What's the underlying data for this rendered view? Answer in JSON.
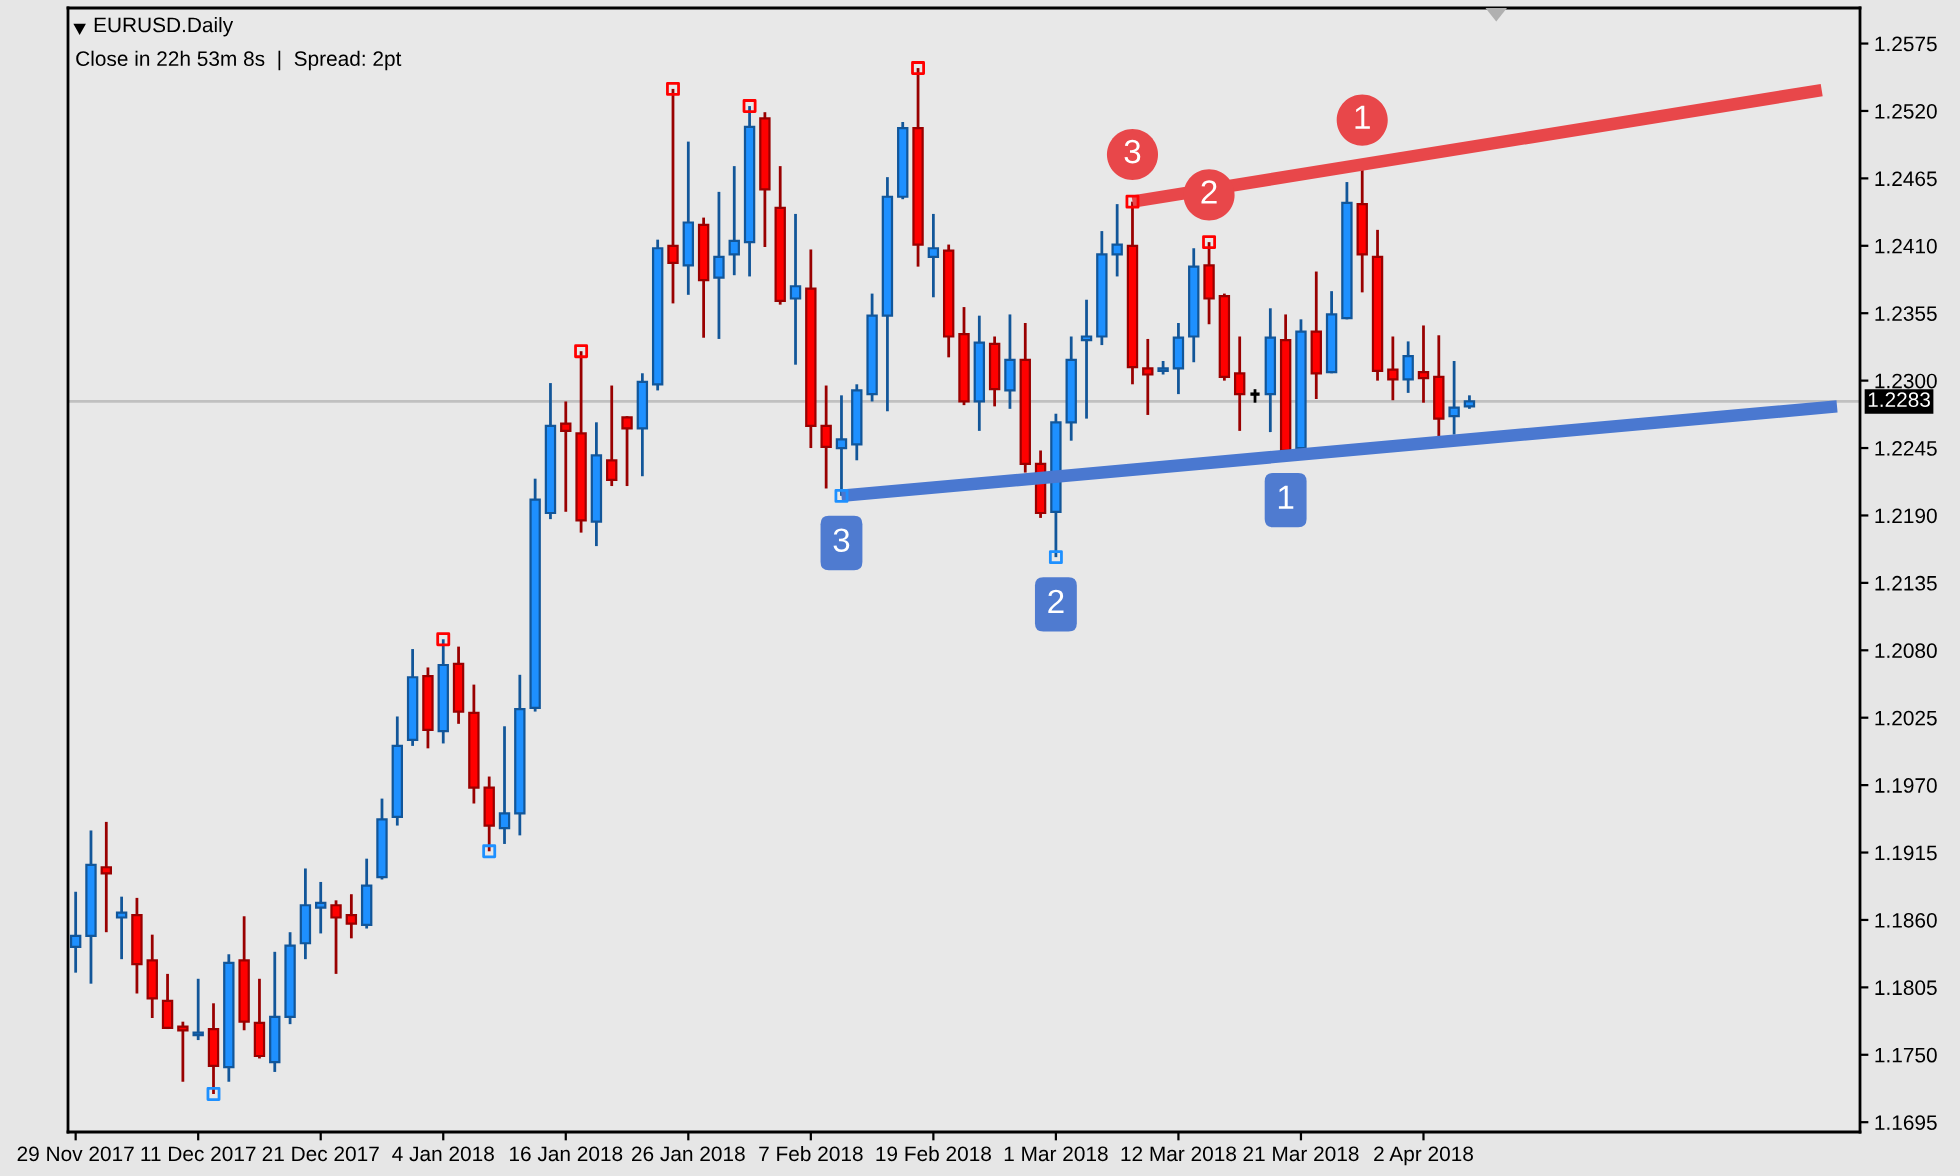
{
  "chart_data": {
    "type": "candlestick",
    "title": "EURUSD.Daily",
    "subtitle": "Close in 22h 53m 8s  |  Spread: 2pt",
    "categories": [
      "29 Nov 2017",
      null,
      null,
      null,
      null,
      null,
      null,
      null,
      "11 Dec 2017",
      null,
      null,
      null,
      null,
      null,
      null,
      null,
      "21 Dec 2017",
      null,
      null,
      null,
      null,
      null,
      null,
      null,
      "4 Jan 2018",
      null,
      null,
      null,
      null,
      null,
      null,
      null,
      "16 Jan 2018",
      null,
      null,
      null,
      null,
      null,
      null,
      null,
      "26 Jan 2018",
      null,
      null,
      null,
      null,
      null,
      null,
      null,
      "7 Feb 2018",
      null,
      null,
      null,
      null,
      null,
      null,
      null,
      "19 Feb 2018",
      null,
      null,
      null,
      null,
      null,
      null,
      null,
      "1 Mar 2018",
      null,
      null,
      null,
      null,
      null,
      null,
      null,
      "12 Mar 2018",
      null,
      null,
      null,
      null,
      null,
      null,
      null,
      "21 Mar 2018",
      null,
      null,
      null,
      null,
      null,
      null,
      null,
      "2 Apr 2018",
      null,
      null,
      null,
      null,
      null,
      null,
      null,
      null,
      null,
      null,
      null,
      null,
      null,
      null,
      null,
      null,
      null,
      null,
      null,
      null,
      null,
      null,
      null,
      null,
      null,
      null,
      null,
      null
    ],
    "ohlc": [
      [
        1.1838,
        1.1883,
        1.1817,
        1.1847
      ],
      [
        1.1847,
        1.1933,
        1.1808,
        1.1905
      ],
      [
        1.1903,
        1.194,
        1.185,
        1.1898
      ],
      [
        1.1862,
        1.1879,
        1.1828,
        1.1866
      ],
      [
        1.1864,
        1.1878,
        1.18,
        1.1824
      ],
      [
        1.1827,
        1.1848,
        1.178,
        1.1796
      ],
      [
        1.1794,
        1.1816,
        1.1771,
        1.1772
      ],
      [
        1.1773,
        1.1777,
        1.1728,
        1.177
      ],
      [
        1.1766,
        1.1812,
        1.1762,
        1.1768
      ],
      [
        1.1771,
        1.1792,
        1.1718,
        1.1741
      ],
      [
        1.174,
        1.1832,
        1.1728,
        1.1825
      ],
      [
        1.1827,
        1.1863,
        1.177,
        1.1777
      ],
      [
        1.1776,
        1.1812,
        1.1747,
        1.1749
      ],
      [
        1.1744,
        1.1834,
        1.1736,
        1.1781
      ],
      [
        1.1781,
        1.185,
        1.1775,
        1.1839
      ],
      [
        1.1841,
        1.1902,
        1.1828,
        1.1872
      ],
      [
        1.187,
        1.1891,
        1.1849,
        1.1874
      ],
      [
        1.1872,
        1.1876,
        1.1816,
        1.1862
      ],
      [
        1.1864,
        1.1881,
        1.1845,
        1.1857
      ],
      [
        1.1856,
        1.191,
        1.1853,
        1.1888
      ],
      [
        1.1895,
        1.1959,
        1.1893,
        1.1942
      ],
      [
        1.1944,
        1.2026,
        1.1937,
        1.2002
      ],
      [
        1.2007,
        1.2081,
        1.2002,
        1.2058
      ],
      [
        1.2059,
        1.2066,
        1.2,
        1.2015
      ],
      [
        1.2014,
        1.2089,
        1.2004,
        1.2068
      ],
      [
        1.2069,
        1.2083,
        1.202,
        1.203
      ],
      [
        1.2029,
        1.2052,
        1.1955,
        1.1968
      ],
      [
        1.1968,
        1.1977,
        1.1916,
        1.1937
      ],
      [
        1.1935,
        1.2018,
        1.1922,
        1.1947
      ],
      [
        1.1947,
        1.206,
        1.1929,
        1.2032
      ],
      [
        1.2033,
        1.222,
        1.203,
        1.2203
      ],
      [
        1.2192,
        1.2298,
        1.2187,
        1.2263
      ],
      [
        1.2265,
        1.2283,
        1.2193,
        1.2259
      ],
      [
        1.2257,
        1.2324,
        1.2176,
        1.2186
      ],
      [
        1.2185,
        1.2266,
        1.2165,
        1.2239
      ],
      [
        1.2235,
        1.2296,
        1.2214,
        1.2219
      ],
      [
        1.227,
        1.2271,
        1.2214,
        1.2261
      ],
      [
        1.2261,
        1.2306,
        1.2222,
        1.2299
      ],
      [
        1.2297,
        1.2415,
        1.2292,
        1.2408
      ],
      [
        1.241,
        1.2538,
        1.2363,
        1.2396
      ],
      [
        1.2394,
        1.2495,
        1.237,
        1.2429
      ],
      [
        1.2427,
        1.2433,
        1.2335,
        1.2382
      ],
      [
        1.2384,
        1.2454,
        1.2334,
        1.2401
      ],
      [
        1.2403,
        1.2475,
        1.2386,
        1.2414
      ],
      [
        1.2413,
        1.2524,
        1.2385,
        1.2507
      ],
      [
        1.2514,
        1.2519,
        1.2409,
        1.2456
      ],
      [
        1.2441,
        1.2475,
        1.2362,
        1.2365
      ],
      [
        1.2367,
        1.2436,
        1.2313,
        1.2377
      ],
      [
        1.2375,
        1.2407,
        1.2245,
        1.2263
      ],
      [
        1.2263,
        1.2296,
        1.2212,
        1.2246
      ],
      [
        1.2245,
        1.2288,
        1.2206,
        1.2252
      ],
      [
        1.2248,
        1.2297,
        1.2235,
        1.2292
      ],
      [
        1.2289,
        1.2371,
        1.2283,
        1.2353
      ],
      [
        1.2353,
        1.2466,
        1.2275,
        1.245
      ],
      [
        1.245,
        1.2511,
        1.2448,
        1.2506
      ],
      [
        1.2506,
        1.2555,
        1.2393,
        1.2411
      ],
      [
        1.2401,
        1.2436,
        1.2368,
        1.2408
      ],
      [
        1.2406,
        1.2411,
        1.2319,
        1.2336
      ],
      [
        1.2338,
        1.236,
        1.228,
        1.2283
      ],
      [
        1.2283,
        1.2353,
        1.2259,
        1.2331
      ],
      [
        1.233,
        1.2336,
        1.2279,
        1.2293
      ],
      [
        1.2292,
        1.2354,
        1.2277,
        1.2317
      ],
      [
        1.2317,
        1.2347,
        1.2225,
        1.2232
      ],
      [
        1.2232,
        1.2243,
        1.2188,
        1.2192
      ],
      [
        1.2193,
        1.2273,
        1.2156,
        1.2266
      ],
      [
        1.2266,
        1.2336,
        1.2251,
        1.2317
      ],
      [
        1.2333,
        1.2366,
        1.2269,
        1.2336
      ],
      [
        1.2336,
        1.2422,
        1.2329,
        1.2403
      ],
      [
        1.2403,
        1.2444,
        1.2385,
        1.2411
      ],
      [
        1.241,
        1.2446,
        1.2297,
        1.2311
      ],
      [
        1.231,
        1.2334,
        1.2272,
        1.2305
      ],
      [
        1.2308,
        1.2316,
        1.2305,
        1.231
      ],
      [
        1.231,
        1.2347,
        1.2289,
        1.2335
      ],
      [
        1.2336,
        1.2408,
        1.2315,
        1.2393
      ],
      [
        1.2394,
        1.2413,
        1.2346,
        1.2367
      ],
      [
        1.2369,
        1.2371,
        1.23,
        1.2303
      ],
      [
        1.2306,
        1.2336,
        1.2259,
        1.2289
      ],
      [
        1.2289,
        1.2293,
        1.2282,
        1.2289
      ],
      [
        1.2289,
        1.2359,
        1.2258,
        1.2335
      ],
      [
        1.2333,
        1.2354,
        1.2241,
        1.2243
      ],
      [
        1.2245,
        1.235,
        1.2243,
        1.234
      ],
      [
        1.234,
        1.2389,
        1.2285,
        1.2306
      ],
      [
        1.2307,
        1.2373,
        1.2306,
        1.2354
      ],
      [
        1.2351,
        1.2462,
        1.235,
        1.2445
      ],
      [
        1.2444,
        1.2474,
        1.2372,
        1.2403
      ],
      [
        1.2401,
        1.2423,
        1.23,
        1.2308
      ],
      [
        1.2309,
        1.2336,
        1.2284,
        1.2301
      ],
      [
        1.2301,
        1.2332,
        1.229,
        1.232
      ],
      [
        1.2307,
        1.2345,
        1.2282,
        1.2302
      ],
      [
        1.2303,
        1.2337,
        1.2254,
        1.2269
      ],
      [
        1.2271,
        1.2316,
        1.2256,
        1.2278
      ],
      [
        1.2279,
        1.2288,
        1.2277,
        1.2283
      ],
      null,
      null,
      null,
      null,
      null,
      null,
      null,
      null,
      null,
      null,
      null,
      null,
      null,
      null,
      null,
      null,
      null,
      null,
      null,
      null,
      null,
      null,
      null,
      null,
      null
    ],
    "colors": [
      "#1e90ff",
      "#1e90ff",
      "#ff0000",
      "#1e90ff",
      "#ff0000",
      "#ff0000",
      "#ff0000",
      "#ff0000",
      "#1e90ff",
      "#ff0000",
      "#1e90ff",
      "#ff0000",
      "#ff0000",
      "#1e90ff",
      "#1e90ff",
      "#1e90ff",
      "#1e90ff",
      "#ff0000",
      "#ff0000",
      "#1e90ff",
      "#1e90ff",
      "#1e90ff",
      "#1e90ff",
      "#ff0000",
      "#1e90ff",
      "#ff0000",
      "#ff0000",
      "#ff0000",
      "#1e90ff",
      "#1e90ff",
      "#1e90ff",
      "#1e90ff",
      "#ff0000",
      "#ff0000",
      "#1e90ff",
      "#ff0000",
      "#ff0000",
      "#1e90ff",
      "#1e90ff",
      "#ff0000",
      "#1e90ff",
      "#ff0000",
      "#1e90ff",
      "#1e90ff",
      "#1e90ff",
      "#ff0000",
      "#ff0000",
      "#1e90ff",
      "#ff0000",
      "#ff0000",
      "#1e90ff",
      "#1e90ff",
      "#1e90ff",
      "#1e90ff",
      "#1e90ff",
      "#ff0000",
      "#1e90ff",
      "#ff0000",
      "#ff0000",
      "#1e90ff",
      "#ff0000",
      "#1e90ff",
      "#ff0000",
      "#ff0000",
      "#1e90ff",
      "#1e90ff",
      "#1e90ff",
      "#1e90ff",
      "#1e90ff",
      "#ff0000",
      "#ff0000",
      "#1e90ff",
      "#1e90ff",
      "#1e90ff",
      "#ff0000",
      "#ff0000",
      "#ff0000",
      "#000000",
      "#1e90ff",
      "#ff0000",
      "#1e90ff",
      "#ff0000",
      "#1e90ff",
      "#1e90ff",
      "#ff0000",
      "#ff0000",
      "#ff0000",
      "#1e90ff",
      "#ff0000",
      "#ff0000",
      "#1e90ff",
      "#1e90ff",
      null,
      null,
      null,
      null,
      null,
      null,
      null,
      null,
      null,
      null,
      null,
      null,
      null,
      null,
      null,
      null,
      null,
      null,
      null,
      null,
      null,
      null,
      null,
      null,
      null
    ],
    "series": [
      {
        "type": "line",
        "color": "#e8474a",
        "values": [
          null,
          null,
          null,
          null,
          null,
          null,
          null,
          null,
          null,
          null,
          null,
          null,
          null,
          null,
          null,
          null,
          null,
          null,
          null,
          null,
          null,
          null,
          null,
          null,
          null,
          null,
          null,
          null,
          null,
          null,
          null,
          null,
          null,
          null,
          null,
          null,
          null,
          null,
          null,
          null,
          null,
          null,
          null,
          null,
          null,
          null,
          null,
          null,
          null,
          null,
          null,
          null,
          null,
          null,
          null,
          null,
          null,
          null,
          null,
          null,
          null,
          null,
          null,
          null,
          null,
          null,
          null,
          null,
          null,
          1.2446,
          null,
          null,
          null,
          null,
          null,
          null,
          null,
          null,
          null,
          null,
          null,
          null,
          null,
          null,
          null,
          null,
          null,
          null,
          null,
          null,
          null,
          null,
          null,
          null,
          null,
          null,
          null,
          null,
          null,
          null,
          null,
          null,
          null,
          null,
          null,
          null,
          null,
          null,
          null,
          null,
          null,
          null,
          null,
          null,
          1.2537,
          null,
          null
        ]
      },
      {
        "type": "line",
        "color": "#4a78d0",
        "values": [
          null,
          null,
          null,
          null,
          null,
          null,
          null,
          null,
          null,
          null,
          null,
          null,
          null,
          null,
          null,
          null,
          null,
          null,
          null,
          null,
          null,
          null,
          null,
          null,
          null,
          null,
          null,
          null,
          null,
          null,
          null,
          null,
          null,
          null,
          null,
          null,
          null,
          null,
          null,
          null,
          null,
          null,
          null,
          null,
          null,
          null,
          null,
          null,
          null,
          null,
          1.2206,
          null,
          null,
          null,
          null,
          null,
          null,
          null,
          null,
          null,
          null,
          null,
          null,
          null,
          null,
          null,
          null,
          null,
          null,
          null,
          null,
          null,
          null,
          null,
          null,
          null,
          null,
          null,
          null,
          null,
          null,
          null,
          null,
          null,
          null,
          null,
          null,
          null,
          null,
          null,
          null,
          null,
          null,
          null,
          null,
          null,
          null,
          null,
          null,
          null,
          null,
          null,
          null,
          null,
          null,
          null,
          null,
          null,
          null,
          null,
          null,
          null,
          null,
          null,
          null,
          1.2279,
          null
        ]
      },
      {
        "type": "scatter",
        "color": "#ff0000",
        "marker": "square",
        "values": [
          null,
          null,
          null,
          null,
          null,
          null,
          null,
          null,
          null,
          null,
          null,
          null,
          null,
          null,
          null,
          null,
          null,
          null,
          null,
          null,
          null,
          null,
          null,
          null,
          1.2089,
          null,
          null,
          null,
          null,
          null,
          null,
          null,
          null,
          1.2324,
          null,
          null,
          null,
          null,
          null,
          1.2538,
          null,
          null,
          null,
          null,
          1.2524,
          null,
          null,
          null,
          null,
          null,
          null,
          null,
          null,
          null,
          null,
          1.2555,
          null,
          null,
          null,
          null,
          null,
          null,
          null,
          null,
          null,
          null,
          null,
          null,
          null,
          1.2446,
          null,
          null,
          null,
          null,
          1.2413,
          null,
          null,
          null,
          null,
          null,
          null,
          null,
          null,
          null,
          null,
          null,
          null,
          null,
          null,
          null,
          null,
          null,
          null,
          null,
          null,
          null,
          null,
          null,
          null,
          null,
          null,
          null,
          null,
          null,
          null,
          null,
          null,
          null,
          null,
          null,
          null,
          null,
          null,
          null,
          null,
          null,
          null
        ]
      },
      {
        "type": "scatter",
        "color": "#1e90ff",
        "marker": "square",
        "values": [
          null,
          null,
          null,
          null,
          null,
          null,
          null,
          null,
          null,
          1.1718,
          null,
          null,
          null,
          null,
          null,
          null,
          null,
          null,
          null,
          null,
          null,
          null,
          null,
          null,
          null,
          null,
          null,
          1.1916,
          null,
          null,
          null,
          null,
          null,
          null,
          null,
          null,
          null,
          null,
          null,
          null,
          null,
          null,
          null,
          null,
          null,
          null,
          null,
          null,
          null,
          null,
          1.2206,
          null,
          null,
          null,
          null,
          null,
          null,
          null,
          null,
          null,
          null,
          null,
          null,
          null,
          1.2156,
          null,
          null,
          null,
          null,
          null,
          null,
          null,
          null,
          null,
          null,
          null,
          null,
          null,
          null,
          null,
          null,
          null,
          null,
          null,
          null,
          null,
          null,
          null,
          null,
          null,
          null,
          null,
          null,
          null,
          null,
          null,
          null,
          null,
          null,
          null,
          null,
          null,
          null,
          null,
          null,
          null,
          null,
          null,
          null,
          null,
          null,
          null,
          null,
          null,
          null,
          null,
          null
        ]
      }
    ],
    "ref_lines": [
      {
        "axis": "y",
        "value": 1.2283,
        "label": "1.2283",
        "color": "#c0c0c0"
      }
    ],
    "annotations": [
      {
        "text": "3",
        "y": 1.2446
      },
      {
        "text": "2",
        "y": 1.2413
      },
      {
        "text": "1",
        "y": 1.2474
      },
      {
        "text": "3",
        "y": 1.2206
      },
      {
        "text": "2",
        "y": 1.2156
      },
      {
        "text": "1",
        "y": 1.2241
      }
    ],
    "ylim": [
      1.1687,
      1.2604
    ],
    "yticks": [
      1.1695,
      {
        "value": 1.175,
        "label": "1.1750"
      },
      1.1805,
      {
        "value": 1.186,
        "label": "1.1860"
      },
      1.1915,
      {
        "value": 1.197,
        "label": "1.1970"
      },
      1.2025,
      {
        "value": 1.208,
        "label": "1.2080"
      },
      1.2135,
      {
        "value": 1.219,
        "label": "1.2190"
      },
      1.2245,
      {
        "value": 1.23,
        "label": "1.2300"
      },
      1.2355,
      {
        "value": 1.241,
        "label": "1.2410"
      },
      1.2465,
      {
        "value": 1.252,
        "label": "1.2520"
      },
      1.2575
    ]
  }
}
